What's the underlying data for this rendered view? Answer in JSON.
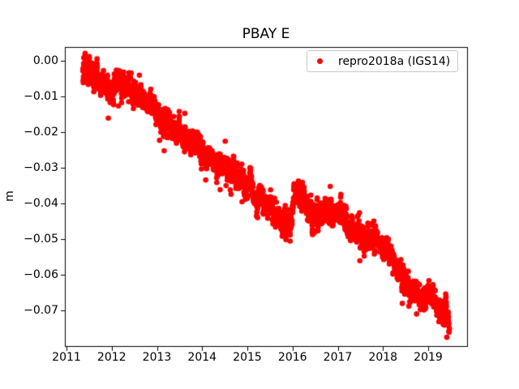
{
  "figure": {
    "background": "#ffffff",
    "axes_frame_color": "#000000"
  },
  "chart_data": {
    "type": "scatter",
    "title": "PBAY E",
    "xlabel": "",
    "ylabel": "m",
    "grid": false,
    "xlim": [
      2010.964,
      2019.861
    ],
    "ylim": [
      -0.08,
      0.0039
    ],
    "x_ticks": {
      "values": [
        2011,
        2012,
        2013,
        2014,
        2015,
        2016,
        2017,
        2018,
        2019
      ],
      "labels": [
        "2011",
        "2012",
        "2013",
        "2014",
        "2015",
        "2016",
        "2017",
        "2018",
        "2019"
      ]
    },
    "y_ticks": {
      "values": [
        0.0,
        -0.01,
        -0.02,
        -0.03,
        -0.04,
        -0.05,
        -0.06,
        -0.07
      ],
      "labels": [
        "0.00",
        "−0.01",
        "−0.02",
        "−0.03",
        "−0.04",
        "−0.05",
        "−0.06",
        "−0.07"
      ]
    },
    "legend": {
      "position": "upper right",
      "entries": [
        {
          "label": "repro2018a (IGS14)",
          "color": "#ff0000",
          "marker": "circle"
        }
      ]
    },
    "series": [
      {
        "name": "repro2018a (IGS14)",
        "color": "#ff0000",
        "marker": "circle",
        "marker_radius_px": 3.3,
        "x_start": 2011.36,
        "x_end": 2019.47,
        "sampling_step_years": 0.0027397,
        "noise_sd_m": 0.0014,
        "outlier_prob": 0.013,
        "trend_points": [
          [
            2011.36,
            0.0002
          ],
          [
            2011.42,
            -0.0012
          ],
          [
            2011.5,
            -0.003
          ],
          [
            2011.6,
            -0.0045
          ],
          [
            2011.72,
            -0.0055
          ],
          [
            2011.82,
            -0.005
          ],
          [
            2011.9,
            -0.0072
          ],
          [
            2011.98,
            -0.009
          ],
          [
            2012.06,
            -0.0078
          ],
          [
            2012.18,
            -0.0058
          ],
          [
            2012.3,
            -0.007
          ],
          [
            2012.42,
            -0.0085
          ],
          [
            2012.55,
            -0.0095
          ],
          [
            2012.7,
            -0.0108
          ],
          [
            2012.85,
            -0.0122
          ],
          [
            2013.0,
            -0.0148
          ],
          [
            2013.15,
            -0.0162
          ],
          [
            2013.3,
            -0.0178
          ],
          [
            2013.5,
            -0.0198
          ],
          [
            2013.7,
            -0.022
          ],
          [
            2013.9,
            -0.0242
          ],
          [
            2014.1,
            -0.0262
          ],
          [
            2014.3,
            -0.0283
          ],
          [
            2014.5,
            -0.03
          ],
          [
            2014.7,
            -0.0318
          ],
          [
            2014.9,
            -0.0342
          ],
          [
            2015.1,
            -0.0365
          ],
          [
            2015.3,
            -0.0388
          ],
          [
            2015.5,
            -0.0412
          ],
          [
            2015.7,
            -0.0438
          ],
          [
            2015.85,
            -0.0455
          ],
          [
            2015.97,
            -0.0468
          ],
          [
            2016.03,
            -0.037
          ],
          [
            2016.15,
            -0.0362
          ],
          [
            2016.3,
            -0.0398
          ],
          [
            2016.45,
            -0.0428
          ],
          [
            2016.6,
            -0.0443
          ],
          [
            2016.75,
            -0.044
          ],
          [
            2016.9,
            -0.0424
          ],
          [
            2017.0,
            -0.0413
          ],
          [
            2017.1,
            -0.043
          ],
          [
            2017.25,
            -0.046
          ],
          [
            2017.4,
            -0.0482
          ],
          [
            2017.55,
            -0.0495
          ],
          [
            2017.7,
            -0.0502
          ],
          [
            2017.85,
            -0.0498
          ],
          [
            2018.0,
            -0.0518
          ],
          [
            2018.15,
            -0.0545
          ],
          [
            2018.3,
            -0.0578
          ],
          [
            2018.45,
            -0.0606
          ],
          [
            2018.6,
            -0.0632
          ],
          [
            2018.75,
            -0.065
          ],
          [
            2018.88,
            -0.0657
          ],
          [
            2018.97,
            -0.0645
          ],
          [
            2019.08,
            -0.067
          ],
          [
            2019.2,
            -0.0684
          ],
          [
            2019.3,
            -0.0696
          ],
          [
            2019.38,
            -0.0712
          ],
          [
            2019.44,
            -0.0742
          ],
          [
            2019.47,
            -0.0756
          ]
        ]
      }
    ]
  }
}
